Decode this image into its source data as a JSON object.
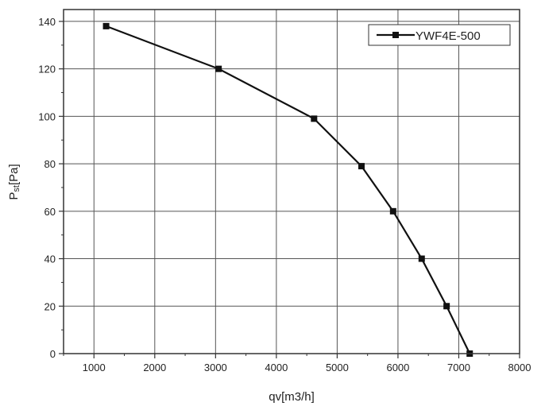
{
  "chart_data": {
    "type": "line",
    "xlabel": "qv[m3/h]",
    "ylabel": {
      "main": "P",
      "sub": "st",
      "rest": "[Pa]"
    },
    "xlim": [
      500,
      8000
    ],
    "ylim": [
      0,
      145
    ],
    "x_ticks": [
      1000,
      2000,
      3000,
      4000,
      5000,
      6000,
      7000,
      8000
    ],
    "y_ticks": [
      0,
      20,
      40,
      60,
      80,
      100,
      120,
      140
    ],
    "grid": true,
    "legend_position": "top-right",
    "series": [
      {
        "name": "YWF4E-500",
        "color": "#111111",
        "marker": "square",
        "x": [
          1200,
          3050,
          4620,
          5400,
          5920,
          6390,
          6800,
          7180
        ],
        "y": [
          138,
          120,
          99,
          79,
          60,
          40,
          20,
          0
        ]
      }
    ]
  }
}
